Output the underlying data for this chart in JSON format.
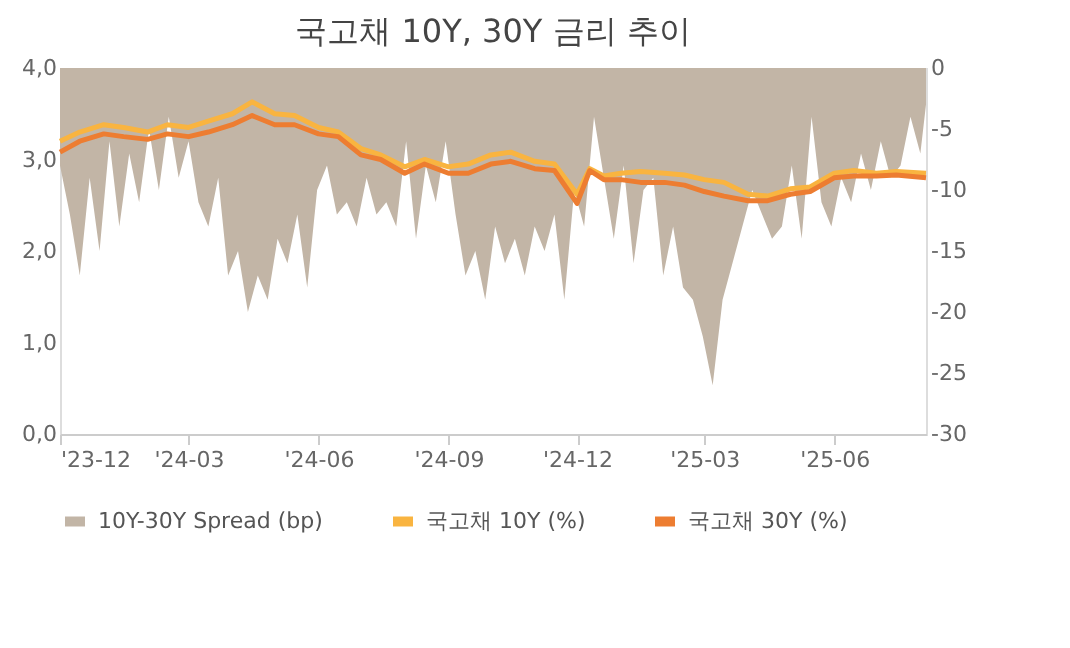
{
  "chart_data": {
    "type": "line",
    "title": "국고채 10Y, 30Y 금리 추이",
    "xlim": [
      "2023-12-01",
      "2025-08-05"
    ],
    "xticks": [
      {
        "value": "2023-12-01",
        "label": "'23-12"
      },
      {
        "value": "2024-03-01",
        "label": "'24-03"
      },
      {
        "value": "2024-06-01",
        "label": "'24-06"
      },
      {
        "value": "2024-09-01",
        "label": "'24-09"
      },
      {
        "value": "2024-12-01",
        "label": "'24-12"
      },
      {
        "value": "2025-03-01",
        "label": "'25-03"
      },
      {
        "value": "2025-06-01",
        "label": "'25-06"
      }
    ],
    "ylim": [
      0,
      4
    ],
    "yticks": [
      {
        "value": 0,
        "label": "0,0"
      },
      {
        "value": 1,
        "label": "1,0"
      },
      {
        "value": 2,
        "label": "2,0"
      },
      {
        "value": 3,
        "label": "3,0"
      },
      {
        "value": 4,
        "label": "4,0"
      }
    ],
    "y2lim": [
      -30,
      0
    ],
    "y2ticks": [
      -30,
      -25,
      -20,
      -15,
      -10,
      -5,
      0
    ],
    "grid": false,
    "legend": "bottom",
    "line_style": "solid",
    "marker": "none",
    "series": [
      {
        "name": "10Y-30Y Spread (bp)",
        "type": "area",
        "axis": "y2",
        "color": "#c2b5a6",
        "x": [
          "2023-12-01",
          "2023-12-08",
          "2023-12-15",
          "2023-12-22",
          "2023-12-29",
          "2024-01-05",
          "2024-01-12",
          "2024-01-19",
          "2024-01-26",
          "2024-02-02",
          "2024-02-09",
          "2024-02-16",
          "2024-02-23",
          "2024-03-01",
          "2024-03-08",
          "2024-03-15",
          "2024-03-22",
          "2024-03-29",
          "2024-04-05",
          "2024-04-12",
          "2024-04-19",
          "2024-04-26",
          "2024-05-03",
          "2024-05-10",
          "2024-05-17",
          "2024-05-24",
          "2024-05-31",
          "2024-06-07",
          "2024-06-14",
          "2024-06-21",
          "2024-06-28",
          "2024-07-05",
          "2024-07-12",
          "2024-07-19",
          "2024-07-26",
          "2024-08-02",
          "2024-08-09",
          "2024-08-16",
          "2024-08-23",
          "2024-08-30",
          "2024-09-06",
          "2024-09-13",
          "2024-09-20",
          "2024-09-27",
          "2024-10-04",
          "2024-10-11",
          "2024-10-18",
          "2024-10-25",
          "2024-11-01",
          "2024-11-08",
          "2024-11-15",
          "2024-11-22",
          "2024-11-29",
          "2024-12-06",
          "2024-12-13",
          "2024-12-20",
          "2024-12-27",
          "2025-01-03",
          "2025-01-10",
          "2025-01-17",
          "2025-01-24",
          "2025-01-31",
          "2025-02-07",
          "2025-02-14",
          "2025-02-21",
          "2025-02-28",
          "2025-03-07",
          "2025-03-14",
          "2025-03-21",
          "2025-03-28",
          "2025-04-04",
          "2025-04-11",
          "2025-04-18",
          "2025-04-25",
          "2025-05-02",
          "2025-05-09",
          "2025-05-16",
          "2025-05-23",
          "2025-05-30",
          "2025-06-06",
          "2025-06-13",
          "2025-06-20",
          "2025-06-27",
          "2025-07-04",
          "2025-07-11",
          "2025-07-18",
          "2025-07-25",
          "2025-08-01",
          "2025-08-05"
        ],
        "values": [
          -8,
          -12,
          -17,
          -9,
          -15,
          -6,
          -13,
          -7,
          -11,
          -5,
          -10,
          -4,
          -9,
          -6,
          -11,
          -13,
          -9,
          -17,
          -15,
          -20,
          -17,
          -19,
          -14,
          -16,
          -12,
          -18,
          -10,
          -8,
          -12,
          -11,
          -13,
          -9,
          -12,
          -11,
          -13,
          -6,
          -14,
          -8,
          -11,
          -6,
          -12,
          -17,
          -15,
          -19,
          -13,
          -16,
          -14,
          -17,
          -13,
          -15,
          -12,
          -19,
          -10,
          -13,
          -4,
          -9,
          -14,
          -8,
          -16,
          -10,
          -9,
          -17,
          -13,
          -18,
          -19,
          -22,
          -26,
          -19,
          -16,
          -13,
          -10,
          -12,
          -14,
          -13,
          -8,
          -14,
          -4,
          -11,
          -13,
          -9,
          -11,
          -7,
          -10,
          -6,
          -9,
          -8,
          -4,
          -7,
          -3
        ]
      },
      {
        "name": "국고채 10Y (%)",
        "color": "#f9b440",
        "x": [
          "2023-12-01",
          "2023-12-15",
          "2024-01-01",
          "2024-01-15",
          "2024-02-01",
          "2024-02-15",
          "2024-03-01",
          "2024-03-15",
          "2024-04-01",
          "2024-04-15",
          "2024-05-01",
          "2024-05-15",
          "2024-06-01",
          "2024-06-15",
          "2024-07-01",
          "2024-07-15",
          "2024-08-01",
          "2024-08-15",
          "2024-09-01",
          "2024-09-15",
          "2024-10-01",
          "2024-10-15",
          "2024-11-01",
          "2024-11-15",
          "2024-12-01",
          "2024-12-10",
          "2024-12-20",
          "2025-01-01",
          "2025-01-15",
          "2025-02-01",
          "2025-02-15",
          "2025-03-01",
          "2025-03-15",
          "2025-04-01",
          "2025-04-15",
          "2025-05-01",
          "2025-05-15",
          "2025-06-01",
          "2025-06-15",
          "2025-07-01",
          "2025-07-15",
          "2025-08-05"
        ],
        "values": [
          3.2,
          3.3,
          3.38,
          3.35,
          3.3,
          3.38,
          3.35,
          3.42,
          3.5,
          3.63,
          3.5,
          3.48,
          3.35,
          3.3,
          3.12,
          3.05,
          2.92,
          3.0,
          2.92,
          2.95,
          3.05,
          3.08,
          2.98,
          2.95,
          2.62,
          2.9,
          2.82,
          2.85,
          2.87,
          2.85,
          2.83,
          2.78,
          2.75,
          2.62,
          2.6,
          2.68,
          2.7,
          2.85,
          2.88,
          2.85,
          2.87,
          2.85
        ]
      },
      {
        "name": "국고채 30Y (%)",
        "color": "#ed7d31",
        "x": [
          "2023-12-01",
          "2023-12-15",
          "2024-01-01",
          "2024-01-15",
          "2024-02-01",
          "2024-02-15",
          "2024-03-01",
          "2024-03-15",
          "2024-04-01",
          "2024-04-15",
          "2024-05-01",
          "2024-05-15",
          "2024-06-01",
          "2024-06-15",
          "2024-07-01",
          "2024-07-15",
          "2024-08-01",
          "2024-08-15",
          "2024-09-01",
          "2024-09-15",
          "2024-10-01",
          "2024-10-15",
          "2024-11-01",
          "2024-11-15",
          "2024-12-01",
          "2024-12-10",
          "2024-12-20",
          "2025-01-01",
          "2025-01-15",
          "2025-02-01",
          "2025-02-15",
          "2025-03-01",
          "2025-03-15",
          "2025-04-01",
          "2025-04-15",
          "2025-05-01",
          "2025-05-15",
          "2025-06-01",
          "2025-06-15",
          "2025-07-01",
          "2025-07-15",
          "2025-08-05"
        ],
        "values": [
          3.08,
          3.2,
          3.28,
          3.25,
          3.22,
          3.28,
          3.25,
          3.3,
          3.38,
          3.48,
          3.38,
          3.38,
          3.28,
          3.25,
          3.05,
          3.0,
          2.85,
          2.95,
          2.85,
          2.85,
          2.95,
          2.98,
          2.9,
          2.88,
          2.52,
          2.88,
          2.78,
          2.78,
          2.75,
          2.75,
          2.72,
          2.65,
          2.6,
          2.55,
          2.55,
          2.62,
          2.65,
          2.8,
          2.82,
          2.82,
          2.83,
          2.8
        ]
      }
    ]
  }
}
